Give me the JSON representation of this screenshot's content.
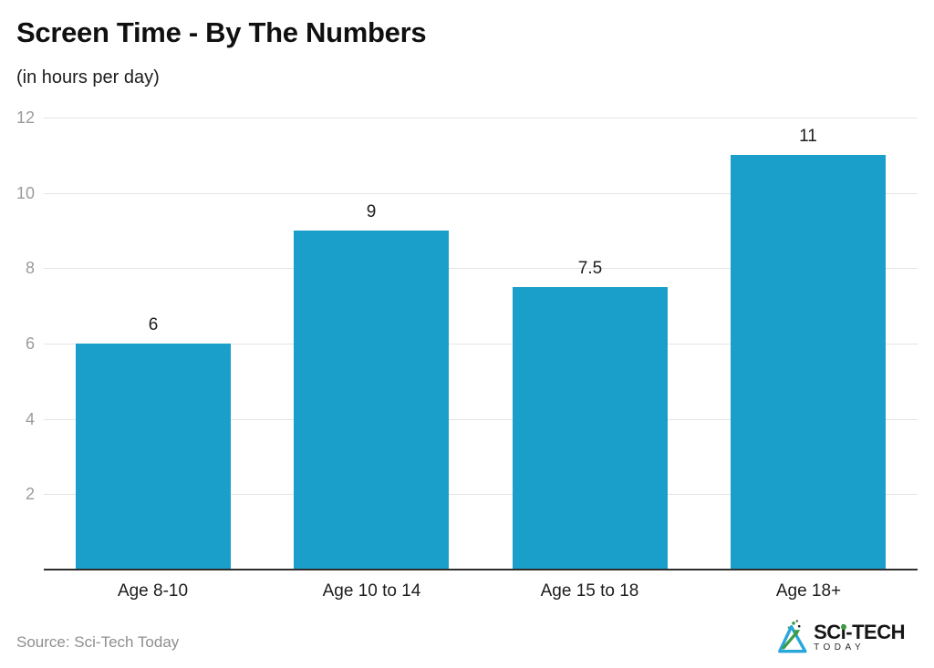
{
  "header": {
    "title": "Screen Time - By The Numbers",
    "subtitle": "(in hours per day)"
  },
  "chart_data": {
    "type": "bar",
    "categories": [
      "Age 8-10",
      "Age 10 to 14",
      "Age 15 to 18",
      "Age 18+"
    ],
    "values": [
      6,
      9,
      7.5,
      11
    ],
    "value_labels": [
      "6",
      "9",
      "7.5",
      "11"
    ],
    "title": "Screen Time - By The Numbers",
    "subtitle": "(in hours per day)",
    "xlabel": "",
    "ylabel": "",
    "ylim": [
      0,
      12
    ],
    "yticks": [
      2,
      4,
      6,
      8,
      10,
      12
    ],
    "grid": true,
    "legend": "none",
    "bar_color": "#1A9FCB"
  },
  "footer": {
    "source": "Source: Sci-Tech Today",
    "brand": {
      "name_left": "SC",
      "name_i": "i",
      "name_right": "-TECH",
      "sub": "TODAY"
    }
  },
  "colors": {
    "bar": "#1A9FCB",
    "gridline": "#E4E4E4",
    "y_tick_text": "#9B9B9B",
    "axis_line": "#2E2E2E",
    "title_text": "#101010",
    "body_text": "#1D1D1D",
    "source_text": "#8F8F8F",
    "logo_blue": "#29A7DB",
    "logo_green": "#3E9D44"
  }
}
